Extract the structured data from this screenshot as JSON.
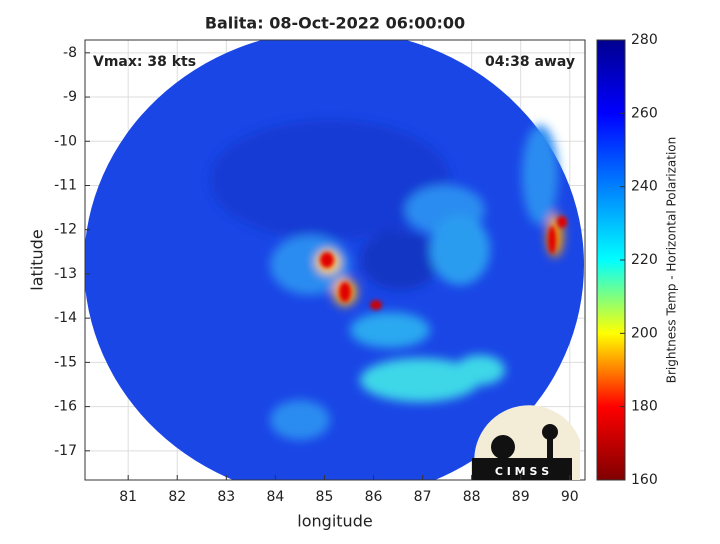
{
  "chart_data": {
    "type": "heatmap",
    "title": "Balita: 08-Oct-2022 06:00:00",
    "xlabel": "longitude",
    "ylabel": "latitude",
    "annotations": [
      "Vmax: 38 kts",
      "04:38 away"
    ],
    "logo": "C I M S S",
    "xlim": [
      80.12,
      90.31
    ],
    "xticks": [
      81,
      82,
      83,
      84,
      85,
      86,
      87,
      88,
      89,
      90
    ],
    "ylim": [
      -17.66,
      -7.71
    ],
    "yticks": [
      -17,
      -16,
      -15,
      -14,
      -13,
      -12,
      -11,
      -10,
      -9,
      -8
    ],
    "grid": true,
    "colorbar": {
      "label": "Brightness Temp - Horizontal Polarization",
      "colormap": "jet",
      "lim": [
        160,
        280
      ],
      "ticks": [
        160,
        180,
        200,
        220,
        240,
        260,
        280
      ]
    }
  }
}
